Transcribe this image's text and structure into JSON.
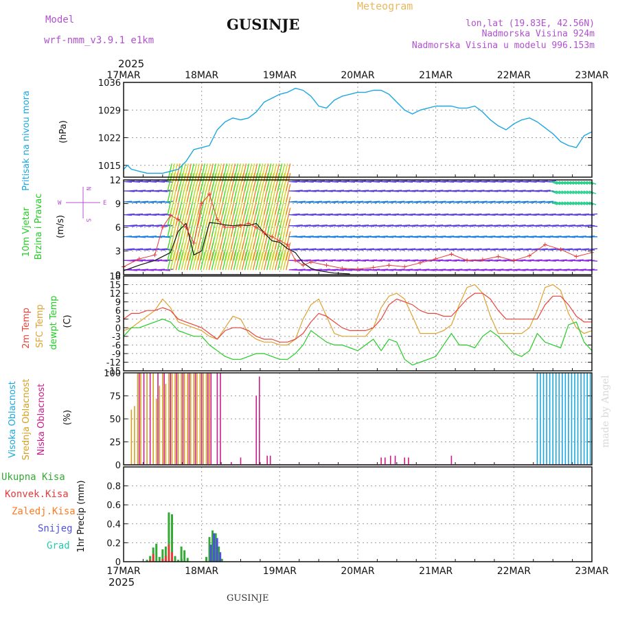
{
  "header": {
    "model_label": "Model",
    "model_name": "wrf-nmm_v3.9.1  e1km",
    "station": "GUSINJE",
    "product": "Meteogram",
    "lonlat": "lon,lat (19.83E, 42.56N)",
    "elevation": "Nadmorska Visina 924m",
    "model_elevation": "Nadmorska Visina u modelu 996.153m"
  },
  "footer": {
    "station": "GUSINJE",
    "credit": "made by Angel"
  },
  "colors": {
    "pressure": "#1aa6e0",
    "temp": "#e8443a",
    "sfc_temp": "#e0a030",
    "dewpoint": "#22cc22",
    "high_cloud": "#1aa6e0",
    "mid_cloud": "#d4a020",
    "low_cloud": "#cc1a88",
    "wind_speed": "#111111",
    "gust": "#e83a3a",
    "total_precip": "#33aa33",
    "conv_precip": "#e83a3a",
    "frozen_precip": "#ff7a20",
    "snow": "#5050e0",
    "graupel": "#22ccaa"
  },
  "chart_data": [
    {
      "type": "line",
      "panel": "pressure",
      "ylabel_lines": [
        "Pritisak na nivou mora",
        "(hPa)"
      ],
      "x_axis": {
        "year_top": "2025",
        "year_bottom": "2025",
        "ticks": [
          "17MAR",
          "18MAR",
          "19MAR",
          "20MAR",
          "21MAR",
          "22MAR",
          "23MAR"
        ],
        "range_days": [
          0,
          6
        ]
      },
      "ylim": [
        1012,
        1036
      ],
      "yticks": [
        1015,
        1022,
        1029,
        1036
      ],
      "series": [
        {
          "x": [
            0,
            0.05,
            0.1,
            0.2,
            0.3,
            0.4,
            0.5,
            0.6,
            0.7,
            0.8,
            0.9,
            1.0,
            1.1,
            1.2,
            1.3,
            1.4,
            1.5,
            1.6,
            1.7,
            1.8,
            1.9,
            2.0,
            2.1,
            2.2,
            2.3,
            2.4,
            2.5,
            2.6,
            2.7,
            2.8,
            2.9,
            3.0,
            3.1,
            3.2,
            3.3,
            3.4,
            3.5,
            3.6,
            3.7,
            3.8,
            3.9,
            4.0,
            4.1,
            4.2,
            4.3,
            4.4,
            4.5,
            4.6,
            4.7,
            4.8,
            4.9,
            5.0,
            5.1,
            5.2,
            5.3,
            5.4,
            5.5,
            5.6,
            5.7,
            5.8,
            5.9,
            6.0
          ],
          "values": [
            1014,
            1015,
            1014,
            1013.5,
            1013,
            1013,
            1013,
            1013.5,
            1014,
            1016,
            1019,
            1019.5,
            1020,
            1024,
            1026,
            1027,
            1026.5,
            1027,
            1028.5,
            1031,
            1032,
            1033,
            1033.5,
            1034.5,
            1034,
            1032.5,
            1030,
            1029.5,
            1031.5,
            1032.5,
            1033,
            1033.5,
            1033.5,
            1034,
            1034,
            1033,
            1031,
            1029,
            1028,
            1029,
            1029.5,
            1030,
            1030,
            1030,
            1029.5,
            1029.5,
            1030,
            1028.5,
            1026.5,
            1025,
            1024,
            1025.5,
            1026.5,
            1027,
            1026,
            1024.5,
            1023,
            1021,
            1020,
            1019.5,
            1022.5,
            1023.5
          ]
        }
      ]
    },
    {
      "type": "line",
      "panel": "wind",
      "ylabel_lines": [
        "10m Vjetar",
        "Brzina i Pravac",
        "(m/s)"
      ],
      "compass": {
        "n": "N",
        "s": "S",
        "w": "W",
        "e": "E"
      },
      "ylim": [
        0,
        12
      ],
      "yticks": [
        0,
        3,
        6,
        9,
        12
      ],
      "series": [
        {
          "name": "wind speed",
          "x": [
            0,
            0.2,
            0.4,
            0.6,
            0.7,
            0.8,
            0.9,
            1.0,
            1.1,
            1.2,
            1.3,
            1.4,
            1.5,
            1.6,
            1.7,
            1.8,
            1.9,
            2.0,
            2.1,
            2.2,
            2.3,
            2.4,
            2.5,
            2.7,
            2.9
          ],
          "values": [
            0.5,
            1.2,
            1.8,
            2.8,
            5.5,
            6.5,
            2.5,
            3,
            6.6,
            6.5,
            6.3,
            6.2,
            6.3,
            6.2,
            6.5,
            5.3,
            4.3,
            4.1,
            3.3,
            2.8,
            1.5,
            0.8,
            0.5,
            0.2,
            0.1
          ]
        },
        {
          "name": "gust",
          "x": [
            0,
            0.2,
            0.4,
            0.5,
            0.6,
            0.7,
            0.8,
            0.9,
            1.0,
            1.1,
            1.2,
            1.3,
            1.4,
            1.5,
            1.6,
            1.7,
            1.8,
            1.9,
            2.0,
            2.1,
            2.2,
            2.3,
            2.4,
            2.6,
            2.8,
            3.0,
            3.2,
            3.4,
            3.6,
            3.8,
            4.0,
            4.2,
            4.4,
            4.6,
            4.8,
            5.0,
            5.2,
            5.4,
            5.6,
            5.8,
            6.0
          ],
          "values": [
            1,
            2,
            2.5,
            6,
            7.5,
            7,
            6,
            4,
            9,
            10.2,
            7,
            6,
            6,
            6.2,
            6.5,
            6,
            5.3,
            4.8,
            4.3,
            3.8,
            1.8,
            1.2,
            1.6,
            1.2,
            0.8,
            0.7,
            0.9,
            1.2,
            1.0,
            1.5,
            2.0,
            2.6,
            1.8,
            1.9,
            2.3,
            1.8,
            2.4,
            3.8,
            3.2,
            2.3,
            2.8
          ]
        }
      ]
    },
    {
      "type": "line",
      "panel": "temperature",
      "ylabel_lines": [
        "2m Temp",
        "SFC Temp",
        "dewpt Temp",
        "(C)"
      ],
      "ylim": [
        -15,
        18
      ],
      "yticks": [
        -15,
        -12,
        -9,
        -6,
        -3,
        0,
        3,
        6,
        9,
        12,
        15,
        18
      ],
      "series": [
        {
          "name": "2m Temp",
          "x": [
            0,
            0.1,
            0.2,
            0.3,
            0.4,
            0.5,
            0.6,
            0.7,
            0.8,
            0.9,
            1.0,
            1.1,
            1.2,
            1.3,
            1.4,
            1.5,
            1.6,
            1.7,
            1.8,
            1.9,
            2.0,
            2.1,
            2.2,
            2.3,
            2.4,
            2.5,
            2.6,
            2.7,
            2.8,
            2.9,
            3.0,
            3.1,
            3.2,
            3.3,
            3.4,
            3.5,
            3.6,
            3.7,
            3.8,
            3.9,
            4.0,
            4.1,
            4.2,
            4.3,
            4.4,
            4.5,
            4.6,
            4.7,
            4.8,
            4.9,
            5.0,
            5.1,
            5.2,
            5.3,
            5.4,
            5.5,
            5.6,
            5.7,
            5.8,
            5.9,
            6.0
          ],
          "values": [
            3,
            5,
            5,
            6,
            6,
            7,
            6,
            3,
            2,
            1,
            0,
            -2,
            -4,
            -1,
            0,
            0,
            -1,
            -3,
            -4,
            -4,
            -5,
            -5,
            -4,
            -2,
            2,
            5,
            4,
            2,
            0,
            -1,
            -1,
            -1,
            0,
            3,
            8,
            10,
            9,
            8,
            6,
            5,
            5,
            4,
            4,
            7,
            10,
            12,
            12,
            10,
            6,
            3,
            3,
            3,
            3,
            3,
            8,
            11,
            11,
            8,
            4,
            2,
            2
          ]
        },
        {
          "name": "SFC Temp",
          "x": [
            0,
            0.1,
            0.2,
            0.3,
            0.4,
            0.5,
            0.6,
            0.7,
            0.8,
            0.9,
            1.0,
            1.1,
            1.2,
            1.3,
            1.4,
            1.5,
            1.6,
            1.7,
            1.8,
            1.9,
            2.0,
            2.1,
            2.2,
            2.3,
            2.4,
            2.5,
            2.6,
            2.7,
            2.8,
            2.9,
            3.0,
            3.1,
            3.2,
            3.3,
            3.4,
            3.5,
            3.6,
            3.7,
            3.8,
            3.9,
            4.0,
            4.1,
            4.2,
            4.3,
            4.4,
            4.5,
            4.6,
            4.7,
            4.8,
            4.9,
            5.0,
            5.1,
            5.2,
            5.3,
            5.4,
            5.5,
            5.6,
            5.7,
            5.8,
            5.9,
            6.0
          ],
          "values": [
            -1,
            0,
            2,
            4,
            6,
            10,
            7,
            2,
            1,
            0,
            -1,
            -3,
            -4,
            0,
            4,
            3,
            -2,
            -4,
            -5,
            -5,
            -6,
            -6,
            -4,
            3,
            8,
            10,
            4,
            -2,
            -3,
            -3,
            -3,
            -3,
            0,
            7,
            11,
            12,
            10,
            4,
            -2,
            -2,
            -2,
            -1,
            1,
            8,
            14,
            15,
            12,
            4,
            -2,
            -2,
            -2,
            -2,
            0,
            6,
            14,
            15,
            13,
            5,
            0,
            -2,
            -1
          ]
        },
        {
          "name": "dewpt Temp",
          "x": [
            0,
            0.1,
            0.2,
            0.3,
            0.4,
            0.5,
            0.6,
            0.7,
            0.8,
            0.9,
            1.0,
            1.1,
            1.2,
            1.3,
            1.4,
            1.5,
            1.6,
            1.7,
            1.8,
            1.9,
            2.0,
            2.1,
            2.2,
            2.3,
            2.4,
            2.5,
            2.6,
            2.7,
            2.8,
            2.9,
            3.0,
            3.1,
            3.2,
            3.3,
            3.4,
            3.5,
            3.6,
            3.7,
            3.8,
            3.9,
            4.0,
            4.1,
            4.2,
            4.3,
            4.4,
            4.5,
            4.6,
            4.7,
            4.8,
            4.9,
            5.0,
            5.1,
            5.2,
            5.3,
            5.4,
            5.5,
            5.6,
            5.7,
            5.8,
            5.9,
            6.0
          ],
          "values": [
            -3,
            0,
            0,
            1,
            2,
            3,
            2,
            -1,
            -2,
            -3,
            -3,
            -6,
            -8,
            -10,
            -11,
            -11,
            -10,
            -9,
            -9,
            -10,
            -11,
            -11,
            -9,
            -6,
            -1,
            -3,
            -5,
            -6,
            -6,
            -7,
            -8,
            -6,
            -4,
            -8,
            -4,
            -5,
            -11,
            -13,
            -12,
            -11,
            -10,
            -6,
            -2,
            -6,
            -6,
            -7,
            -3,
            -1,
            -3,
            -6,
            -9,
            -10,
            -8,
            -2,
            -5,
            -6,
            -7,
            1,
            2,
            -5,
            -8
          ]
        }
      ]
    },
    {
      "type": "bar",
      "panel": "cloud",
      "ylabel_lines": [
        "Visoka Oblacnost",
        "Srednja Oblacnost",
        "Niska Oblacnost",
        "(%)"
      ],
      "ylim": [
        0,
        100
      ],
      "yticks": [
        0,
        25,
        50,
        75,
        100
      ],
      "series": [
        {
          "name": "Srednja Oblacnost",
          "x": [
            0.1,
            0.14,
            0.18,
            0.22,
            0.3,
            0.38,
            0.42,
            0.46,
            0.5,
            0.54,
            0.58,
            0.62,
            0.66,
            0.7,
            0.74,
            0.78,
            0.82,
            0.86,
            0.9,
            0.94,
            0.98,
            1.02,
            1.06,
            1.1
          ],
          "values": [
            60,
            64,
            100,
            100,
            100,
            100,
            72,
            86,
            100,
            88,
            100,
            100,
            100,
            100,
            100,
            100,
            100,
            100,
            100,
            100,
            100,
            100,
            100,
            100
          ]
        },
        {
          "name": "Niska Oblacnost",
          "x": [
            0.2,
            0.26,
            0.34,
            0.44,
            0.52,
            0.6,
            0.68,
            0.76,
            0.84,
            0.92,
            1.0,
            1.08,
            1.12,
            1.2,
            1.24,
            1.38,
            1.5,
            1.7,
            1.74,
            1.84,
            1.88,
            3.3,
            3.35,
            3.42,
            3.48,
            3.6,
            3.65,
            4.2
          ],
          "values": [
            100,
            100,
            100,
            100,
            100,
            100,
            100,
            100,
            100,
            100,
            100,
            100,
            100,
            100,
            100,
            3,
            8,
            75,
            96,
            10,
            10,
            8,
            8,
            10,
            10,
            8,
            8,
            10
          ]
        },
        {
          "name": "Visoka Oblacnost",
          "x": [
            5.3,
            5.34,
            5.38,
            5.42,
            5.46,
            5.5,
            5.54,
            5.58,
            5.62,
            5.66,
            5.7,
            5.74,
            5.78,
            5.82,
            5.86,
            5.9,
            5.94,
            5.98
          ],
          "values": [
            100,
            100,
            100,
            100,
            100,
            100,
            100,
            100,
            100,
            100,
            100,
            100,
            100,
            100,
            100,
            100,
            100,
            100
          ]
        }
      ]
    },
    {
      "type": "bar",
      "panel": "precip",
      "ylabel_lines": [
        "1hr Precip (mm)"
      ],
      "legend": [
        "Ukupna Kisa",
        "Konvek.Kisa",
        "Zaledj.Kisa",
        "Snijeg",
        "Grad"
      ],
      "ylim": [
        0,
        1.0
      ],
      "yticks": [
        0,
        0.2,
        0.4,
        0.6,
        0.8
      ],
      "series": [
        {
          "name": "Ukupna Kisa",
          "x": [
            0.3,
            0.34,
            0.38,
            0.42,
            0.46,
            0.5,
            0.54,
            0.58,
            0.62,
            0.66,
            0.7,
            0.74,
            0.78,
            0.82,
            1.06,
            1.1,
            1.14,
            1.18,
            1.22,
            1.26
          ],
          "values": [
            0.02,
            0.06,
            0.15,
            0.19,
            0.05,
            0.13,
            0.16,
            0.52,
            0.5,
            0.06,
            0.02,
            0.16,
            0.12,
            0.04,
            0.05,
            0.26,
            0.33,
            0.3,
            0.16,
            0.03
          ]
        },
        {
          "name": "Konvek.Kisa",
          "x": [
            0.34,
            0.38,
            0.5,
            0.54,
            0.58,
            0.62
          ],
          "values": [
            0.02,
            0.08,
            0.03,
            0.06,
            0.18,
            0.1
          ]
        },
        {
          "name": "Snijeg",
          "x": [
            1.1,
            1.14,
            1.18,
            1.22
          ],
          "values": [
            0.18,
            0.3,
            0.25,
            0.1
          ]
        }
      ]
    }
  ]
}
